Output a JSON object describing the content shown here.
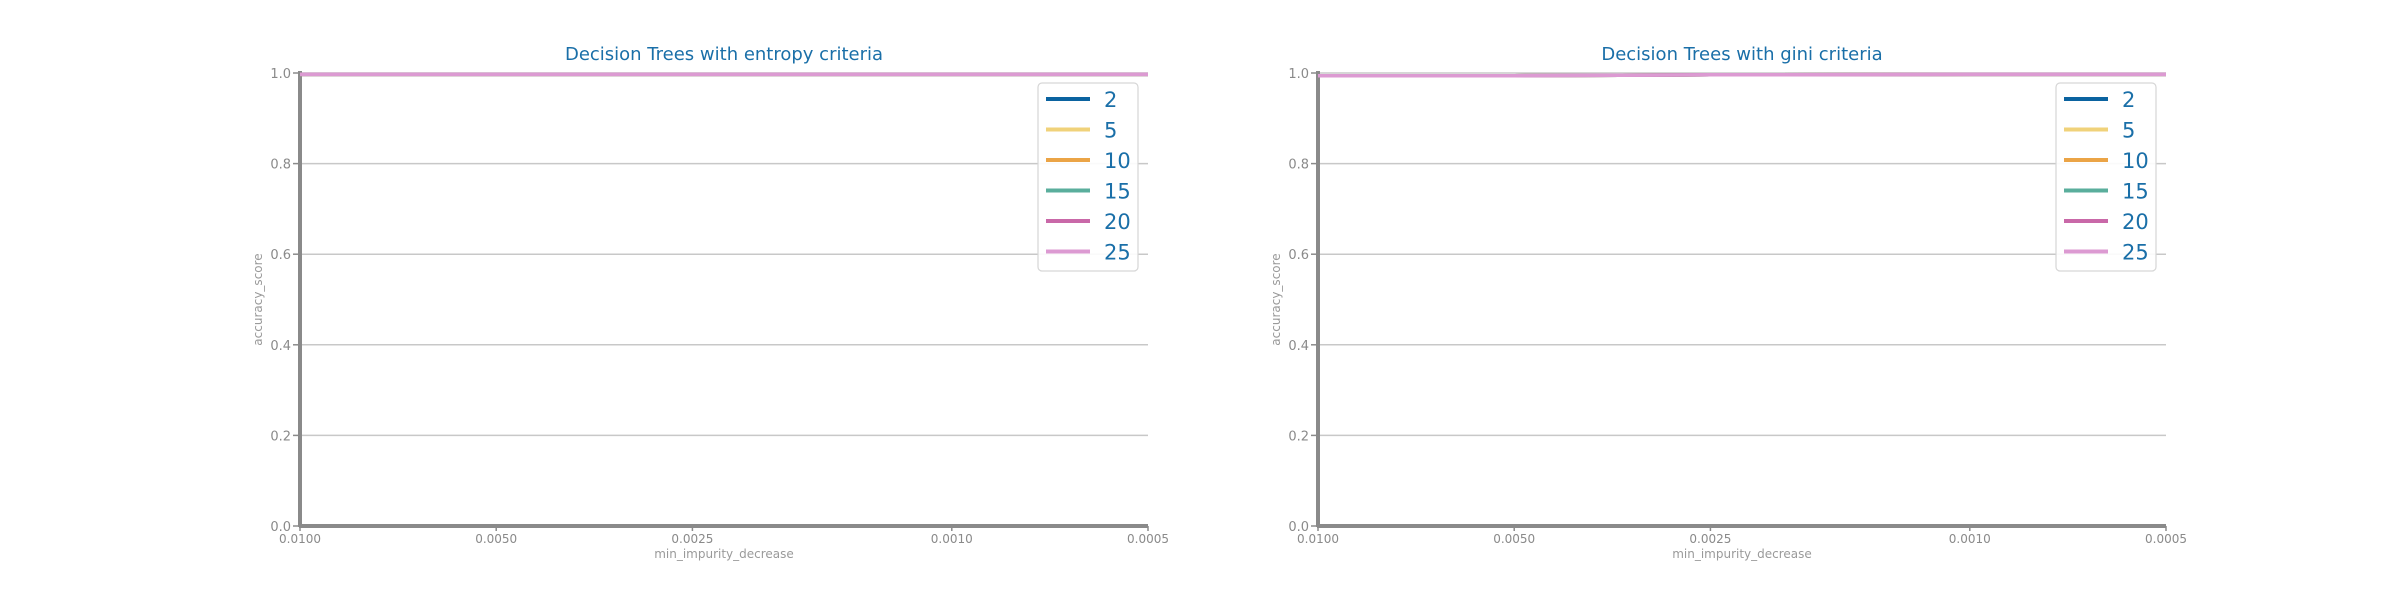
{
  "chart_data": [
    {
      "type": "line",
      "title": "Decision Trees with entropy criteria",
      "xlabel": "min_impurity_decrease",
      "ylabel": "accuracy_score",
      "x": [
        0.01,
        0.005,
        0.0025,
        0.001,
        0.0005
      ],
      "x_tick_labels": [
        "0.0100",
        "0.0050",
        "0.0025",
        "0.0010",
        "0.0005"
      ],
      "ylim": [
        0.0,
        1.0
      ],
      "y_ticks": [
        0.0,
        0.2,
        0.4,
        0.6,
        0.8,
        1.0
      ],
      "y_tick_labels": [
        "0.0",
        "0.2",
        "0.4",
        "0.6",
        "0.8",
        "1.0"
      ],
      "grid": "horizontal",
      "legend_position": "top-right",
      "series": [
        {
          "name": "2",
          "color": "#0b63a0",
          "values": [
            0.997,
            0.997,
            0.997,
            0.997,
            0.997
          ]
        },
        {
          "name": "5",
          "color": "#f0d27a",
          "values": [
            0.997,
            0.997,
            0.997,
            0.997,
            0.997
          ]
        },
        {
          "name": "10",
          "color": "#eba446",
          "values": [
            0.997,
            0.997,
            0.997,
            0.997,
            0.997
          ]
        },
        {
          "name": "15",
          "color": "#5aae9c",
          "values": [
            0.997,
            0.997,
            0.997,
            0.997,
            0.997
          ]
        },
        {
          "name": "20",
          "color": "#c968a8",
          "values": [
            0.997,
            0.997,
            0.997,
            0.997,
            0.997
          ]
        },
        {
          "name": "25",
          "color": "#dc9ad2",
          "values": [
            0.997,
            0.997,
            0.997,
            0.997,
            0.997
          ]
        }
      ]
    },
    {
      "type": "line",
      "title": "Decision Trees with gini criteria",
      "xlabel": "min_impurity_decrease",
      "ylabel": "accuracy_score",
      "x": [
        0.01,
        0.005,
        0.0025,
        0.001,
        0.0005
      ],
      "x_tick_labels": [
        "0.0100",
        "0.0050",
        "0.0025",
        "0.0010",
        "0.0005"
      ],
      "ylim": [
        0.0,
        1.0
      ],
      "y_ticks": [
        0.0,
        0.2,
        0.4,
        0.6,
        0.8,
        1.0
      ],
      "y_tick_labels": [
        "0.0",
        "0.2",
        "0.4",
        "0.6",
        "0.8",
        "1.0"
      ],
      "grid": "horizontal",
      "legend_position": "top-right",
      "series": [
        {
          "name": "2",
          "color": "#0b63a0",
          "values": [
            0.994,
            0.994,
            0.996,
            0.997,
            0.997
          ]
        },
        {
          "name": "5",
          "color": "#f0d27a",
          "values": [
            0.994,
            0.994,
            0.996,
            0.997,
            0.997
          ]
        },
        {
          "name": "10",
          "color": "#eba446",
          "values": [
            0.994,
            0.994,
            0.996,
            0.997,
            0.997
          ]
        },
        {
          "name": "15",
          "color": "#5aae9c",
          "values": [
            0.994,
            0.994,
            0.996,
            0.997,
            0.997
          ]
        },
        {
          "name": "20",
          "color": "#c968a8",
          "values": [
            0.994,
            0.994,
            0.996,
            0.997,
            0.997
          ]
        },
        {
          "name": "25",
          "color": "#dc9ad2",
          "values": [
            0.994,
            0.994,
            0.996,
            0.997,
            0.997
          ]
        }
      ]
    }
  ]
}
